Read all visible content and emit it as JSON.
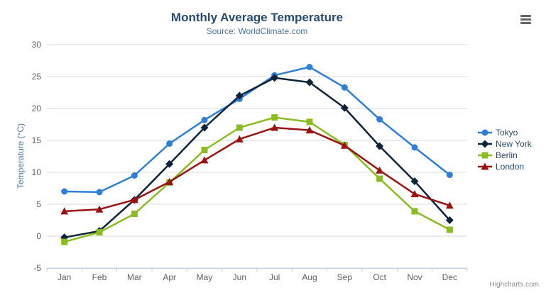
{
  "header": {
    "menu_icon": "hamburger-icon"
  },
  "credits": {
    "label": "Highcharts.com"
  },
  "ui_colors": {
    "title": "#274b6d",
    "subtitle": "#4d759e",
    "axis_title": "#4d759e",
    "tick_label": "#606060",
    "grid": "#d8d8d8",
    "axis_line": "#c0d0e0",
    "legend_text": "#274b6d",
    "menu_icon": "#666666",
    "credits_text": "#909090"
  },
  "chart_data": {
    "type": "line",
    "title": "Monthly Average Temperature",
    "subtitle": "Source: WorldClimate.com",
    "xlabel": "",
    "ylabel": "Temperature (°C)",
    "ylim": [
      -5,
      30
    ],
    "ytick_interval": 5,
    "grid": true,
    "legend_position": "right",
    "categories": [
      "Jan",
      "Feb",
      "Mar",
      "Apr",
      "May",
      "Jun",
      "Jul",
      "Aug",
      "Sep",
      "Oct",
      "Nov",
      "Dec"
    ],
    "series": [
      {
        "name": "Tokyo",
        "color": "#2f7ed8",
        "marker": "circle",
        "values": [
          7.0,
          6.9,
          9.5,
          14.5,
          18.2,
          21.5,
          25.2,
          26.5,
          23.3,
          18.3,
          13.9,
          9.6
        ]
      },
      {
        "name": "New York",
        "color": "#0d233a",
        "marker": "diamond",
        "values": [
          -0.2,
          0.8,
          5.7,
          11.3,
          17.0,
          22.0,
          24.8,
          24.1,
          20.1,
          14.1,
          8.6,
          2.5
        ]
      },
      {
        "name": "Berlin",
        "color": "#8bbc21",
        "marker": "square",
        "values": [
          -0.9,
          0.6,
          3.5,
          8.4,
          13.5,
          17.0,
          18.6,
          17.9,
          14.3,
          9.0,
          3.9,
          1.0
        ]
      },
      {
        "name": "London",
        "color": "#9a1212",
        "marker": "triangle",
        "values": [
          3.9,
          4.2,
          5.7,
          8.5,
          11.9,
          15.2,
          17.0,
          16.6,
          14.2,
          10.3,
          6.6,
          4.8
        ]
      }
    ]
  }
}
